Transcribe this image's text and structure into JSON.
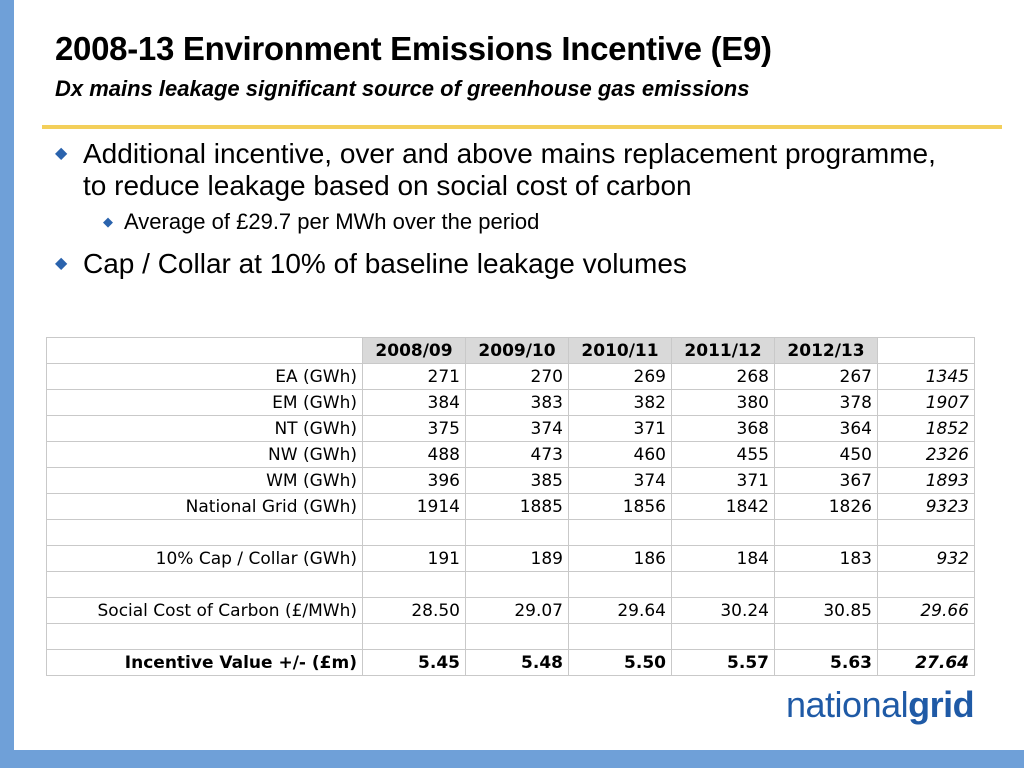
{
  "slide": {
    "title": "2008-13 Environment Emissions Incentive (E9)",
    "subtitle": "Dx mains leakage significant source of greenhouse gas emissions"
  },
  "bullets": [
    {
      "text": "Additional incentive, over and above mains replacement programme, to reduce leakage based on social cost of carbon"
    },
    {
      "text": "Average of £29.7 per MWh over the period"
    },
    {
      "text": "Cap / Collar at 10% of baseline leakage volumes"
    }
  ],
  "table": {
    "headers": [
      "",
      "2008/09",
      "2009/10",
      "2010/11",
      "2011/12",
      "2012/13",
      ""
    ],
    "rows": [
      {
        "label": "EA (GWh)",
        "values": [
          "271",
          "270",
          "269",
          "268",
          "267"
        ],
        "total": "1345"
      },
      {
        "label": "EM (GWh)",
        "values": [
          "384",
          "383",
          "382",
          "380",
          "378"
        ],
        "total": "1907"
      },
      {
        "label": "NT (GWh)",
        "values": [
          "375",
          "374",
          "371",
          "368",
          "364"
        ],
        "total": "1852"
      },
      {
        "label": "NW (GWh)",
        "values": [
          "488",
          "473",
          "460",
          "455",
          "450"
        ],
        "total": "2326"
      },
      {
        "label": "WM (GWh)",
        "values": [
          "396",
          "385",
          "374",
          "371",
          "367"
        ],
        "total": "1893"
      },
      {
        "label": "National Grid (GWh)",
        "values": [
          "1914",
          "1885",
          "1856",
          "1842",
          "1826"
        ],
        "total": "9323"
      },
      {
        "label": "",
        "values": [
          "",
          "",
          "",
          "",
          ""
        ],
        "total": ""
      },
      {
        "label": "10% Cap / Collar (GWh)",
        "values": [
          "191",
          "189",
          "186",
          "184",
          "183"
        ],
        "total": "932"
      },
      {
        "label": "",
        "values": [
          "",
          "",
          "",
          "",
          ""
        ],
        "total": ""
      },
      {
        "label": "Social Cost of Carbon (£/MWh)",
        "values": [
          "28.50",
          "29.07",
          "29.64",
          "30.24",
          "30.85"
        ],
        "total": "29.66"
      },
      {
        "label": "",
        "values": [
          "",
          "",
          "",
          "",
          ""
        ],
        "total": ""
      },
      {
        "label": "Incentive Value +/- (£m)",
        "values": [
          "5.45",
          "5.48",
          "5.50",
          "5.57",
          "5.63"
        ],
        "total": "27.64"
      }
    ]
  },
  "logo": {
    "part1": "national",
    "part2": "grid"
  },
  "colors": {
    "accent_bar": "#6fa0d8",
    "rule": "#f3cf5a",
    "bullet": "#2a63ad",
    "logo": "#1f5aa6"
  }
}
